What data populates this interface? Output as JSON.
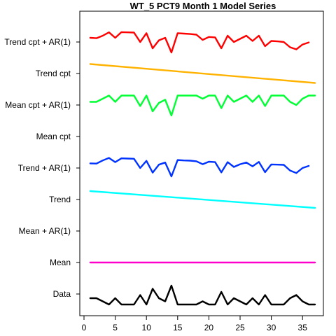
{
  "chart_data": {
    "type": "line",
    "title": "WT_5 PCT9 Month 1 Model Series",
    "xlabel": "",
    "ylabel": "",
    "xlim": [
      0,
      38
    ],
    "x_ticks": [
      0,
      5,
      10,
      15,
      20,
      25,
      30,
      35
    ],
    "grid": false,
    "rows": [
      "Data",
      "Mean",
      "Mean + AR(1)",
      "Trend",
      "Trend + AR(1)",
      "Mean cpt",
      "Mean cpt + AR(1)",
      "Trend cpt",
      "Trend cpt + AR(1)"
    ],
    "series": [
      {
        "name": "Data",
        "color": "#000000",
        "x": [
          1,
          2,
          3,
          4,
          5,
          6,
          7,
          8,
          9,
          10,
          11,
          12,
          13,
          14,
          15,
          16,
          17,
          18,
          19,
          20,
          21,
          22,
          23,
          24,
          25,
          26,
          27,
          28,
          29,
          30,
          31,
          32,
          33,
          34,
          35,
          36,
          37
        ],
        "values": [
          0.3,
          0.3,
          0.15,
          0,
          0.3,
          0,
          0,
          0,
          0.45,
          0,
          0.75,
          0.3,
          0.15,
          0.9,
          0,
          0,
          0,
          0,
          0.15,
          0,
          0,
          0.6,
          0,
          0.3,
          0.15,
          0,
          0.3,
          0,
          0.45,
          0,
          0,
          0,
          0.3,
          0.45,
          0.15,
          0,
          0
        ]
      },
      {
        "name": "Mean",
        "color": "#ff00cc",
        "x": [
          1,
          37
        ],
        "values": [
          0.5,
          0.5
        ]
      },
      {
        "name": "Trend",
        "color": "#00ffff",
        "x": [
          1,
          37
        ],
        "values": [
          0.9,
          0.1
        ]
      },
      {
        "name": "Trend + AR(1)",
        "color": "#0033ff",
        "x": [
          1,
          2,
          3,
          4,
          5,
          6,
          7,
          8,
          9,
          10,
          11,
          12,
          13,
          14,
          15,
          16,
          17,
          18,
          19,
          20,
          21,
          22,
          23,
          24,
          25,
          26,
          27,
          28,
          29,
          30,
          31,
          32,
          33,
          34,
          35,
          36
        ],
        "values": [
          0.72,
          0.71,
          0.86,
          0.98,
          0.78,
          0.96,
          0.95,
          0.94,
          0.5,
          0.84,
          0.28,
          0.66,
          0.76,
          0.1,
          0.88,
          0.86,
          0.85,
          0.82,
          0.68,
          0.8,
          0.78,
          0.29,
          0.78,
          0.55,
          0.68,
          0.76,
          0.58,
          0.79,
          0.3,
          0.67,
          0.66,
          0.65,
          0.38,
          0.26,
          0.5,
          0.6
        ]
      },
      {
        "name": "Mean cpt + AR(1)",
        "color": "#00ff33",
        "x": [
          1,
          2,
          3,
          4,
          5,
          6,
          7,
          8,
          9,
          10,
          11,
          12,
          13,
          14,
          15,
          16,
          17,
          18,
          19,
          20,
          21,
          22,
          23,
          24,
          25,
          26,
          27,
          28,
          29,
          30,
          31,
          32,
          33,
          34,
          35,
          36,
          37
        ],
        "values": [
          0.65,
          0.65,
          0.8,
          0.95,
          0.65,
          0.95,
          0.95,
          0.95,
          0.45,
          0.95,
          0.2,
          0.6,
          0.75,
          0,
          0.95,
          0.95,
          0.95,
          0.95,
          0.8,
          0.95,
          0.95,
          0.35,
          0.95,
          0.65,
          0.8,
          0.95,
          0.65,
          0.95,
          0.45,
          0.95,
          0.95,
          0.95,
          0.65,
          0.5,
          0.8,
          0.95,
          0.95
        ]
      },
      {
        "name": "Trend cpt",
        "color": "#ffb300",
        "x": [
          1,
          37
        ],
        "values": [
          0.95,
          0.05
        ]
      },
      {
        "name": "Trend cpt + AR(1)",
        "color": "#ff0000",
        "x": [
          1,
          2,
          3,
          4,
          5,
          6,
          7,
          8,
          9,
          10,
          11,
          12,
          13,
          14,
          15,
          16,
          17,
          18,
          19,
          20,
          21,
          22,
          23,
          24,
          25,
          26,
          27,
          28,
          29,
          30,
          31,
          32,
          33,
          34,
          35,
          36
        ],
        "values": [
          0.7,
          0.68,
          0.8,
          0.96,
          0.7,
          0.97,
          0.96,
          0.95,
          0.5,
          0.92,
          0.2,
          0.58,
          0.7,
          0,
          0.92,
          0.9,
          0.88,
          0.85,
          0.6,
          0.74,
          0.72,
          0.2,
          0.8,
          0.5,
          0.65,
          0.8,
          0.55,
          0.8,
          0.3,
          0.55,
          0.53,
          0.5,
          0.25,
          0.15,
          0.38,
          0.48
        ]
      }
    ]
  }
}
